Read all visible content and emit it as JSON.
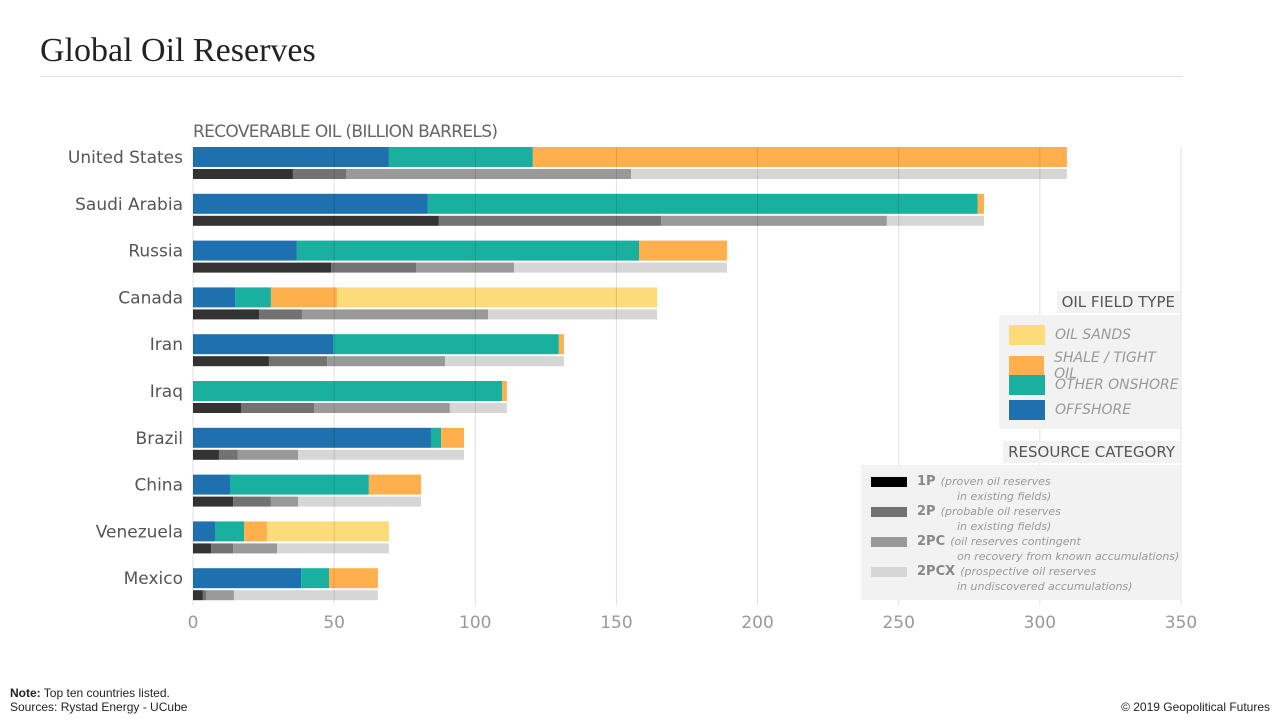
{
  "title": "Global Oil Reserves",
  "note_label": "Note:",
  "note_text": "Top ten countries listed.",
  "sources": "Sources: Rystad Energy - UCube",
  "copyright": "© 2019 Geopolitical Futures",
  "chart_data": {
    "type": "bar",
    "title": "RECOVERABLE OIL (BILLION BARRELS)",
    "orientation": "horizontal-stacked",
    "xlim": [
      0,
      350
    ],
    "xticks": [
      0,
      50,
      100,
      150,
      200,
      250,
      300,
      350
    ],
    "categories": [
      "United States",
      "Saudi Arabia",
      "Russia",
      "Canada",
      "Iran",
      "Iraq",
      "Brazil",
      "China",
      "Venezuela",
      "Mexico"
    ],
    "field_type_series": [
      {
        "name": "OFFSHORE",
        "color": "#1f70ae",
        "values": [
          69.4,
          83.2,
          36.8,
          14.9,
          49.6,
          0,
          84.3,
          13.1,
          7.8,
          38.3
        ]
      },
      {
        "name": "OTHER ONSHORE",
        "color": "#1ab0a0",
        "values": [
          51.0,
          194.8,
          121.2,
          12.7,
          80.0,
          109.5,
          3.6,
          49.2,
          10.3,
          9.9
        ]
      },
      {
        "name": "SHALE / TIGHT OIL",
        "color": "#ffb04d",
        "values": [
          189.2,
          2.2,
          31.2,
          23.4,
          1.8,
          1.7,
          8.1,
          18.5,
          8.1,
          17.3
        ]
      },
      {
        "name": "OIL SANDS",
        "color": "#fcdb7a",
        "values": [
          0,
          0,
          0,
          113.4,
          0,
          0,
          0,
          0,
          43.2,
          0
        ]
      }
    ],
    "resource_series": [
      {
        "name": "1P",
        "desc1": "(proven oil reserves",
        "desc2": "in existing fields)",
        "color": "#333333",
        "values": [
          35.4,
          87.1,
          48.9,
          23.4,
          26.9,
          17.0,
          9.2,
          14.2,
          6.4,
          3.5
        ]
      },
      {
        "name": "2P",
        "desc1": "(probable oil reserves",
        "desc2": "in existing fields)",
        "color": "#727272",
        "values": [
          18.8,
          78.7,
          30.1,
          15.2,
          20.6,
          25.9,
          6.7,
          13.4,
          7.8,
          1.1
        ]
      },
      {
        "name": "2PC",
        "desc1": "(oil reserves contingent",
        "desc2": "on recovery from known accumulations)",
        "color": "#999999",
        "values": [
          101.0,
          80.0,
          34.7,
          65.9,
          41.8,
          48.1,
          21.3,
          9.6,
          15.6,
          9.9
        ]
      },
      {
        "name": "2PCX",
        "desc1": "(prospective oil reserves",
        "desc2": "in undiscovered accumulations)",
        "color": "#d6d6d6",
        "values": [
          154.4,
          34.4,
          75.5,
          59.9,
          42.1,
          20.2,
          58.8,
          43.6,
          39.6,
          51.0
        ]
      }
    ],
    "legend_field_title": "OIL FIELD TYPE",
    "legend_resource_title": "RESOURCE CATEGORY",
    "legend_placement": "right"
  }
}
